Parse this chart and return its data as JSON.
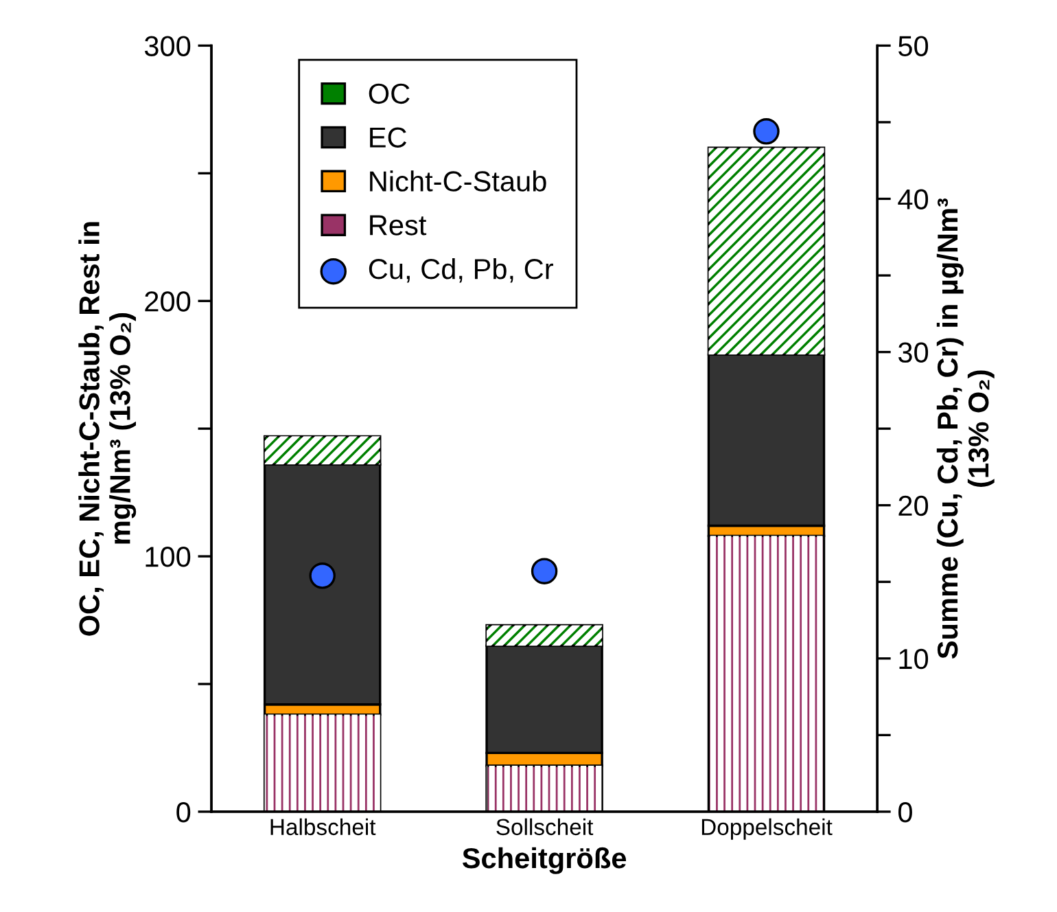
{
  "chart_data": {
    "type": "bar",
    "stacked": true,
    "xlabel": "Scheitgröße",
    "ylabel": "OC, EC, Nicht-C-Staub, Rest in\nmg/Nm³ (13% O₂)",
    "y2label": "Summe (Cu, Cd, Pb, Cr) in µg/Nm³\n(13% O₂)",
    "categories": [
      "Halbscheit",
      "Sollscheit",
      "Doppelscheit"
    ],
    "series": [
      {
        "name": "Rest",
        "color": "#993366",
        "values": [
          38,
          18,
          108
        ]
      },
      {
        "name": "Nicht-C-Staub",
        "color": "#ff9900",
        "values": [
          4,
          5,
          4
        ]
      },
      {
        "name": "EC",
        "color": "#333333",
        "values": [
          94,
          42,
          67
        ]
      },
      {
        "name": "OC",
        "color": "#008000",
        "values": [
          11,
          8,
          81
        ]
      },
      {
        "name": "Cu, Cd, Pb, Cr",
        "type": "scatter",
        "axis": "y2",
        "color": "#3366ff",
        "values": [
          15.4,
          15.7,
          44.4
        ],
        "x": [
          "Halbscheit",
          "Sollscheit",
          "Doppelscheit"
        ]
      }
    ],
    "ylim": [
      0,
      300
    ],
    "yticks": [
      0,
      {
        "value": 50,
        "label": null
      },
      100,
      {
        "value": 150,
        "label": null
      },
      200,
      {
        "value": 250,
        "label": null
      },
      300
    ],
    "y2lim": [
      0,
      50
    ],
    "y2ticks": [
      0,
      {
        "value": 5,
        "label": null
      },
      10,
      {
        "value": 15,
        "label": null
      },
      20,
      {
        "value": 25,
        "label": null
      },
      30,
      {
        "value": 35,
        "label": null
      },
      40,
      {
        "value": 45,
        "label": null
      },
      50
    ],
    "grid": false,
    "legend": "top",
    "marker": "circle"
  }
}
